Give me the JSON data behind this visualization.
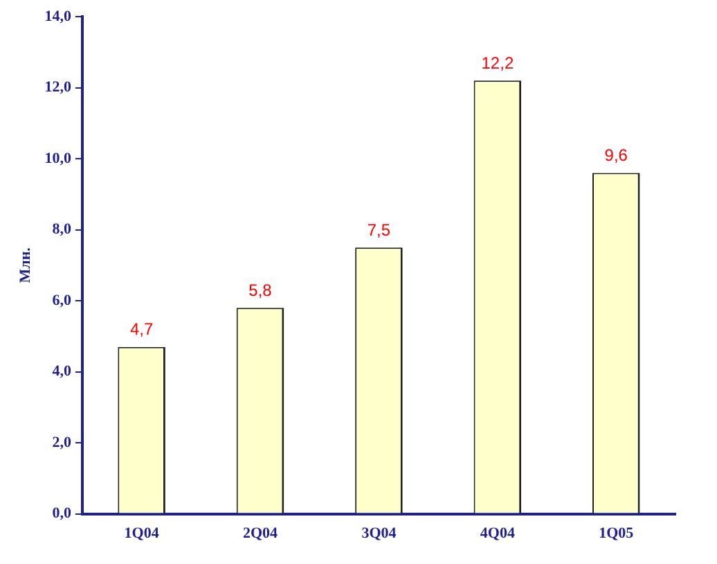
{
  "chart_data": {
    "type": "bar",
    "ylabel": "Млн.",
    "categories": [
      "1Q04",
      "2Q04",
      "3Q04",
      "4Q04",
      "1Q05"
    ],
    "values": [
      4.7,
      5.8,
      7.5,
      12.2,
      9.6
    ],
    "color": "#ffffcc",
    "value_labels": [
      "4,7",
      "5,8",
      "7,5",
      "12,2",
      "9,6"
    ],
    "ylim": [
      0,
      14
    ],
    "yticks": [
      {
        "value": 0,
        "label": "0,0"
      },
      {
        "value": 2,
        "label": "2,0"
      },
      {
        "value": 4,
        "label": "4,0"
      },
      {
        "value": 6,
        "label": "6,0"
      },
      {
        "value": 8,
        "label": "8,0"
      },
      {
        "value": 10,
        "label": "10,0"
      },
      {
        "value": 12,
        "label": "12,0"
      },
      {
        "value": 14,
        "label": "14,0"
      }
    ],
    "grid": false,
    "legend": false
  }
}
